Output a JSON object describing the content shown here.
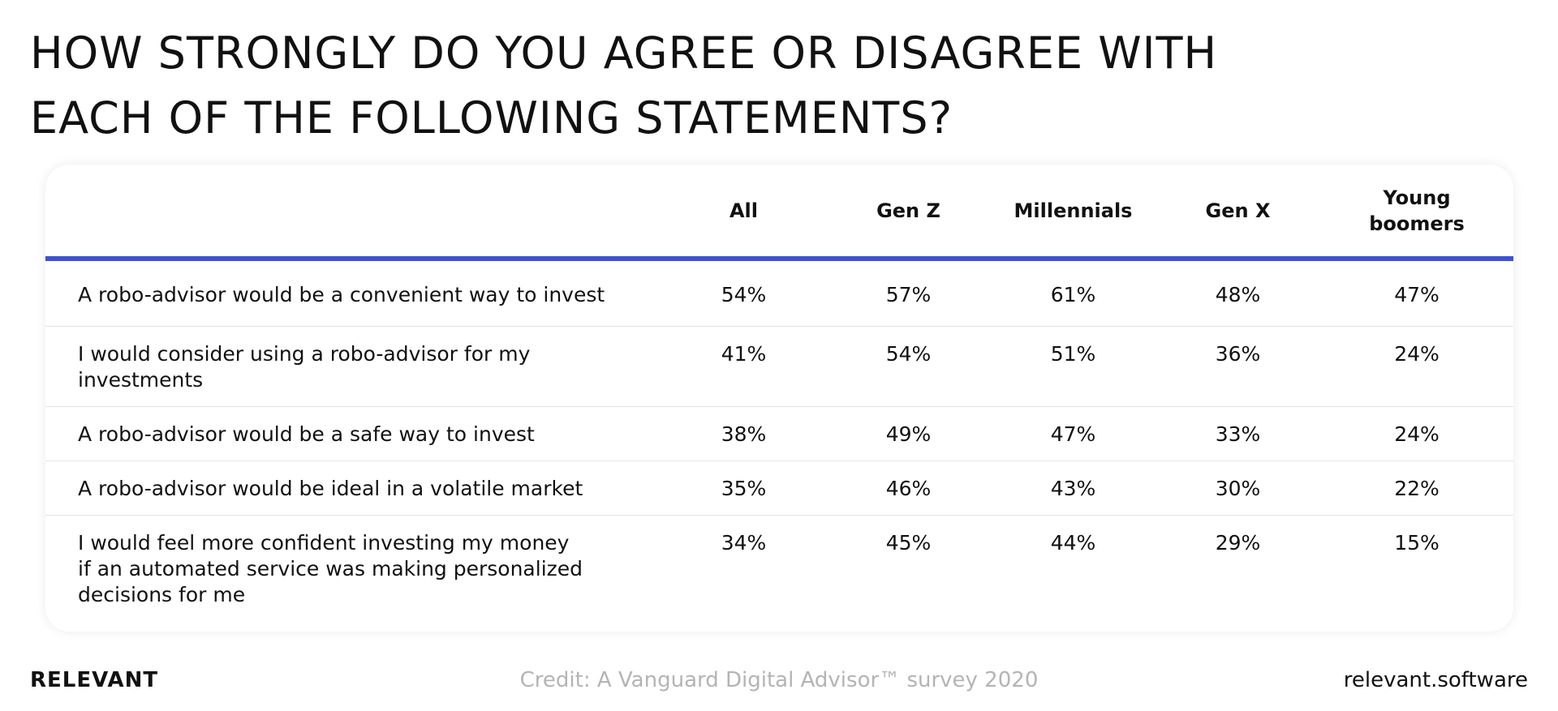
{
  "header": {
    "title_lines": [
      "HOW STRONGLY DO YOU AGREE OR DISAGREE WITH",
      "EACH OF THE FOLLOWING STATEMENTS?"
    ]
  },
  "table": {
    "columns": [
      "All",
      "Gen Z",
      "Millennials",
      "Gen X",
      "Young\nboomers"
    ],
    "rows": [
      [
        "A robo-advisor would be a convenient way to invest",
        "54%",
        "57%",
        "61%",
        "48%",
        "47%"
      ],
      [
        "I would consider using a robo-advisor for my\ninvestments",
        "41%",
        "54%",
        "51%",
        "36%",
        "24%"
      ],
      [
        "A robo-advisor would be a safe way to invest",
        "38%",
        "49%",
        "47%",
        "33%",
        "24%"
      ],
      [
        "A robo-advisor would be ideal in a volatile market",
        "35%",
        "46%",
        "43%",
        "30%",
        "22%"
      ],
      [
        "I would feel more confident investing my money\nif an automated service was making personalized\ndecisions for me",
        "34%",
        "45%",
        "44%",
        "29%",
        "15%"
      ]
    ]
  },
  "footer": {
    "brand": "RELEVANT",
    "credit": "Credit: A Vanguard Digital Advisor™ survey 2020",
    "site": "relevant.software"
  }
}
